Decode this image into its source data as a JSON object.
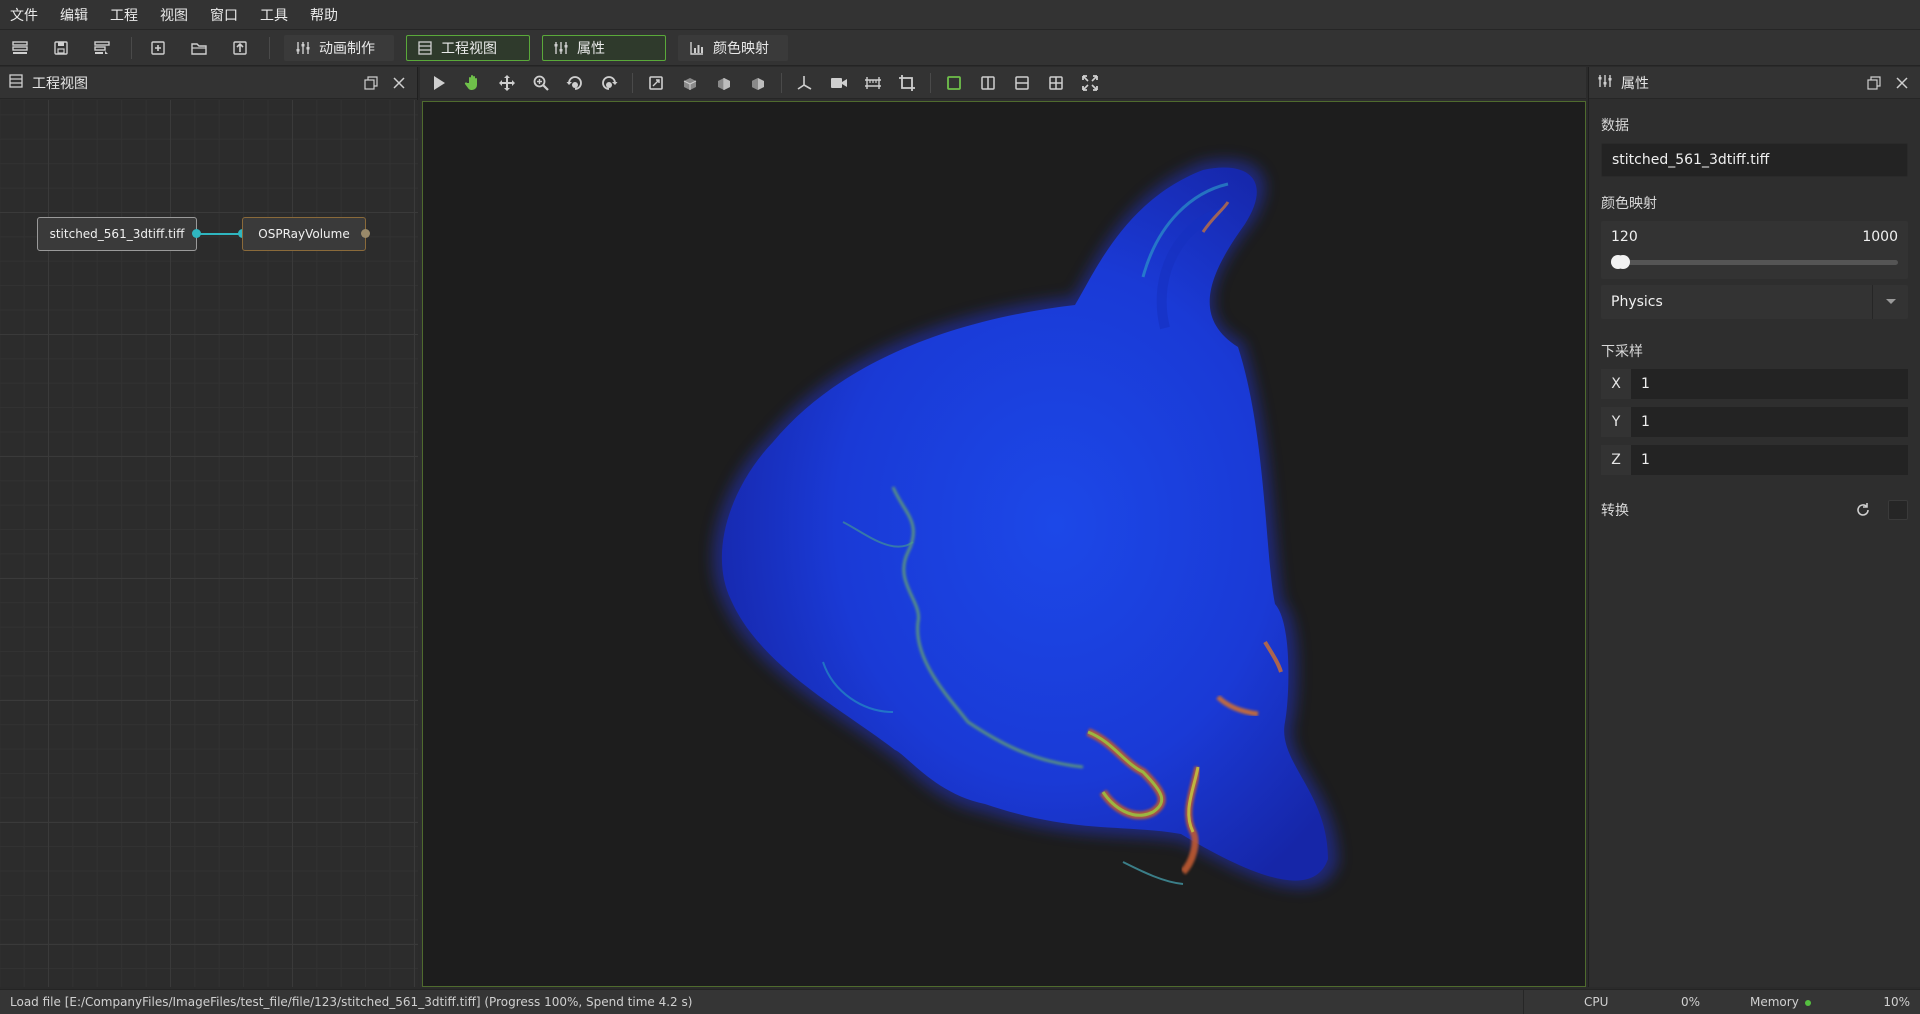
{
  "menu": [
    "文件",
    "编辑",
    "工程",
    "视图",
    "窗口",
    "工具",
    "帮助"
  ],
  "toolbar": {
    "tabs": [
      {
        "label": "动画制作",
        "icon": "sliders-icon"
      },
      {
        "label": "工程视图",
        "icon": "list-icon"
      },
      {
        "label": "属性",
        "icon": "sliders-icon"
      },
      {
        "label": "颜色映射",
        "icon": "chart-icon"
      }
    ]
  },
  "project_view": {
    "title": "工程视图",
    "nodes": [
      {
        "label": "stitched_561_3dtiff.tiff"
      },
      {
        "label": "OSPRayVolume"
      }
    ]
  },
  "properties": {
    "title": "属性",
    "data_label": "数据",
    "data_value": "stitched_561_3dtiff.tiff",
    "colormap_label": "颜色映射",
    "range_min": "120",
    "range_max": "1000",
    "range_fraction": [
      0.0,
      0.005
    ],
    "colormap_preset": "Physics",
    "downsample_label": "下采样",
    "downsample": {
      "x_label": "X",
      "x": "1",
      "y_label": "Y",
      "y": "1",
      "z_label": "Z",
      "z": "1"
    },
    "transform_label": "转换"
  },
  "status": {
    "message": "Load file [E:/CompanyFiles/ImageFiles/test_file/file/123/stitched_561_3dtiff.tiff] (Progress 100%, Spend time 4.2 s)",
    "cpu_label": "CPU",
    "cpu_value": "0%",
    "memory_label": "Memory",
    "memory_value": "10%"
  },
  "colors": {
    "accent_green": "#5aa93a",
    "link_cyan": "#2fb6c0",
    "volume_blue": "#1e3fe0"
  }
}
